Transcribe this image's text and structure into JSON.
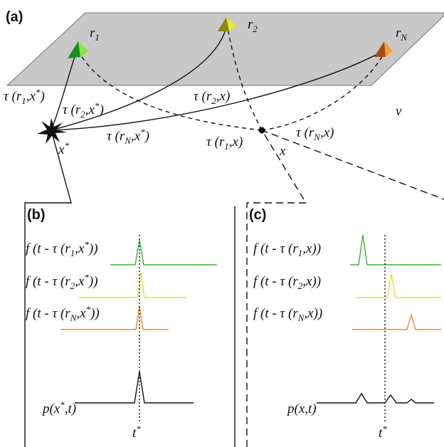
{
  "panel_a": {
    "tag": "(a)",
    "r1": [
      "r",
      {
        "sub": "1"
      }
    ],
    "r2": [
      "r",
      {
        "sub": "2"
      }
    ],
    "rN": [
      "r",
      {
        "sub": "N"
      }
    ],
    "tau_r1_xs": [
      "τ (r",
      {
        "sub": "1"
      },
      ",x",
      {
        "sup": "*"
      },
      ")"
    ],
    "tau_r2_xs": [
      "τ (r",
      {
        "sub": "2"
      },
      ",x",
      {
        "sup": "*"
      },
      ")"
    ],
    "tau_rN_xs": [
      "τ (r",
      {
        "sub": "N"
      },
      ",x",
      {
        "sup": "*"
      },
      ")"
    ],
    "tau_r2_x": [
      "τ (r",
      {
        "sub": "2"
      },
      ",x)"
    ],
    "tau_r1_x": [
      "τ (r",
      {
        "sub": "1"
      },
      ",x)"
    ],
    "tau_rN_x": [
      "τ (r",
      {
        "sub": "N"
      },
      ",x)"
    ],
    "xs": [
      "x",
      {
        "sup": "*"
      }
    ],
    "x": [
      "x"
    ],
    "v": [
      "v"
    ]
  },
  "panel_b": {
    "tag": "(b)",
    "f1": [
      "f (t - τ (r",
      {
        "sub": "1"
      },
      ",x",
      {
        "sup": "*"
      },
      "))"
    ],
    "f2": [
      "f (t - τ (r",
      {
        "sub": "2"
      },
      ",x",
      {
        "sup": "*"
      },
      "))"
    ],
    "fN": [
      "f (t - τ (r",
      {
        "sub": "N"
      },
      ",x",
      {
        "sup": "*"
      },
      "))"
    ],
    "p": [
      "p(x",
      {
        "sup": "*"
      },
      ",t)"
    ],
    "t": [
      "t",
      {
        "sup": "*"
      }
    ]
  },
  "panel_c": {
    "tag": "(c)",
    "f1": [
      "f (t - τ (r",
      {
        "sub": "1"
      },
      ",x))"
    ],
    "f2": [
      "f (t - τ (r",
      {
        "sub": "2"
      },
      ",x))"
    ],
    "fN": [
      "f (t - τ (r",
      {
        "sub": "N"
      },
      ",x))"
    ],
    "p": [
      "p(x,t)"
    ],
    "t": [
      "t",
      {
        "sup": "*"
      }
    ]
  }
}
